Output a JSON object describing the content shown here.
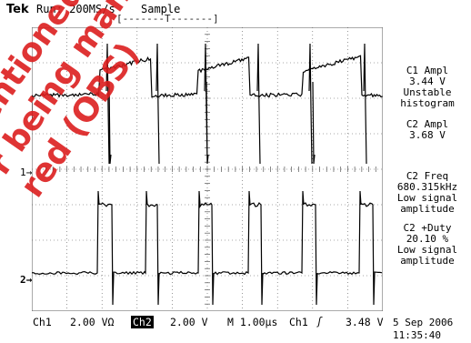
{
  "header": {
    "brand": "Tek",
    "run_status": "Run: 200MS/s",
    "acquisition_mode": "Sample",
    "trigger_position_marker": "[-------T-------]"
  },
  "channel_markers": {
    "ch1": "1→",
    "ch2": "2→"
  },
  "measurements": {
    "c1_ampl_label": "C1 Ampl",
    "c1_ampl_value": "3.44 V",
    "c1_ampl_note1": "Unstable",
    "c1_ampl_note2": "histogram",
    "c2_ampl_label": "C2 Ampl",
    "c2_ampl_value": "3.68 V",
    "c2_freq_label": "C2 Freq",
    "c2_freq_value": "680.315kHz",
    "c2_freq_note1": "Low signal",
    "c2_freq_note2": "amplitude",
    "c2_duty_label": "C2 +Duty",
    "c2_duty_value": "20.10 %",
    "c2_duty_note1": "Low signal",
    "c2_duty_note2": "amplitude"
  },
  "status_bar": {
    "ch1_label": "Ch1",
    "ch1_scale": "2.00 VΩ",
    "ch2_label": "Ch2",
    "ch2_scale": "2.00 V",
    "timebase": "M 1.00µs",
    "trigger_source": "Ch1",
    "trigger_slope": "ʃ",
    "trigger_level": "3.48 V",
    "date": "5 Sep 2006",
    "time": "11:35:40"
  },
  "watermark": {
    "line1": "mentioned",
    "line2": "r being manu",
    "line3": "red (OBS)"
  },
  "colors": {
    "trace": "#000000",
    "grid": "#555555",
    "watermark": "#dc1e1e"
  }
}
